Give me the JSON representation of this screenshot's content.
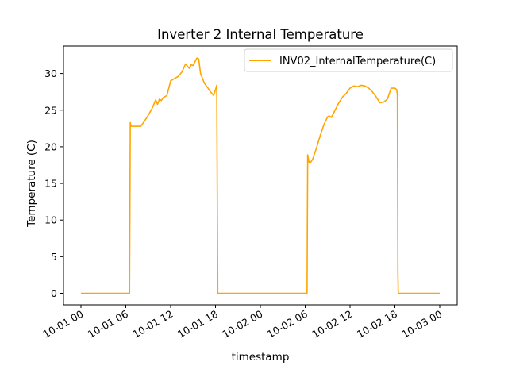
{
  "chart_data": {
    "type": "line",
    "title": "Inverter 2 Internal Temperature",
    "xlabel": "timestamp",
    "ylabel": "Temperature (C)",
    "x_ticks": [
      "10-01 00",
      "10-01 06",
      "10-01 12",
      "10-01 18",
      "10-02 00",
      "10-02 06",
      "10-02 12",
      "10-02 18",
      "10-03 00"
    ],
    "y_ticks": [
      "0",
      "5",
      "10",
      "15",
      "20",
      "25",
      "30"
    ],
    "xlim": [
      "2020-10-01 00:00",
      "2020-10-03 00:00"
    ],
    "ylim": [
      0,
      32
    ],
    "grid": false,
    "legend_position": "top-right",
    "series": [
      {
        "name": "INV02_InternalTemperature(C)",
        "color": "#FFA500",
        "x": [
          "10-01 00:00",
          "10-01 06:30",
          "10-01 06:36",
          "10-01 06:40",
          "10-01 06:45",
          "10-01 07:00",
          "10-01 07:30",
          "10-01 08:00",
          "10-01 08:30",
          "10-01 09:00",
          "10-01 09:30",
          "10-01 10:00",
          "10-01 10:15",
          "10-01 10:30",
          "10-01 10:45",
          "10-01 11:00",
          "10-01 11:30",
          "10-01 12:00",
          "10-01 12:30",
          "10-01 13:00",
          "10-01 13:30",
          "10-01 14:00",
          "10-01 14:30",
          "10-01 14:45",
          "10-01 15:00",
          "10-01 15:30",
          "10-01 15:45",
          "10-01 16:00",
          "10-01 16:30",
          "10-01 17:00",
          "10-01 17:15",
          "10-01 17:30",
          "10-01 17:45",
          "10-01 18:00",
          "10-01 18:10",
          "10-01 18:18",
          "10-01 18:20",
          "10-02 06:15",
          "10-02 06:20",
          "10-02 06:30",
          "10-02 06:45",
          "10-02 07:00",
          "10-02 07:30",
          "10-02 08:00",
          "10-02 08:30",
          "10-02 09:00",
          "10-02 09:15",
          "10-02 09:30",
          "10-02 10:00",
          "10-02 10:30",
          "10-02 11:00",
          "10-02 11:30",
          "10-02 12:00",
          "10-02 12:30",
          "10-02 13:00",
          "10-02 13:30",
          "10-02 14:00",
          "10-02 14:30",
          "10-02 15:00",
          "10-02 15:30",
          "10-02 16:00",
          "10-02 16:30",
          "10-02 17:00",
          "10-02 17:30",
          "10-02 18:00",
          "10-02 18:15",
          "10-02 18:20",
          "10-02 18:24",
          "10-02 18:27",
          "10-03 00:00"
        ],
        "values": [
          0,
          0,
          23.3,
          22.8,
          22.8,
          22.8,
          22.8,
          22.8,
          23.5,
          24.3,
          25.2,
          26.4,
          25.8,
          26.5,
          26.3,
          26.7,
          27.0,
          29.0,
          29.3,
          29.6,
          30.2,
          31.3,
          30.7,
          31.2,
          31.1,
          32.1,
          32.0,
          30.0,
          28.7,
          28.0,
          27.6,
          27.3,
          27.0,
          27.8,
          28.4,
          0,
          0,
          0,
          18.9,
          17.9,
          17.9,
          18.3,
          19.8,
          21.5,
          23.0,
          24.1,
          24.2,
          24.0,
          25.0,
          26.0,
          26.8,
          27.3,
          28.0,
          28.3,
          28.2,
          28.4,
          28.3,
          28.0,
          27.5,
          26.8,
          26.0,
          26.1,
          26.5,
          28.0,
          28.0,
          27.8,
          27.0,
          3.0,
          0,
          0
        ]
      }
    ]
  }
}
